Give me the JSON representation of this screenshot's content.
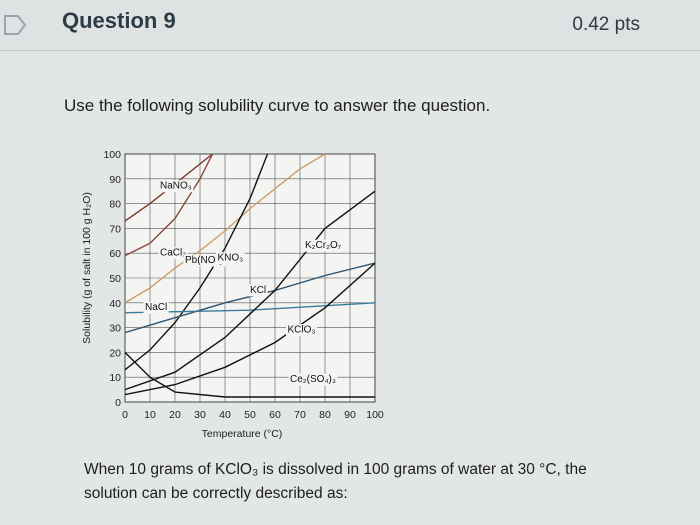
{
  "header": {
    "title": "Question 9",
    "points": "0.42 pts"
  },
  "body": {
    "prompt": "Use the following solubility curve to answer the question.",
    "question": "When 10 grams of KClO₃ is dissolved in 100 grams of water at 30 °C, the solution can be correctly described as:"
  },
  "chart_data": {
    "type": "line",
    "xlabel": "Temperature (°C)",
    "ylabel": "Solubility (g of salt in 100 g H₂O)",
    "xlim": [
      0,
      100
    ],
    "ylim": [
      0,
      100
    ],
    "xticks": [
      "0",
      "10",
      "20",
      "30",
      "40",
      "50",
      "60",
      "70",
      "80",
      "90",
      "100"
    ],
    "yticks": [
      "0",
      "10",
      "20",
      "30",
      "40",
      "50",
      "60",
      "70",
      "80",
      "90",
      "100"
    ],
    "grid": true,
    "series": [
      {
        "name": "NaNO₃",
        "points": [
          [
            0,
            73
          ],
          [
            10,
            80
          ],
          [
            20,
            88
          ],
          [
            30,
            96
          ],
          [
            35,
            100
          ]
        ],
        "label_at": [
          14,
          86
        ]
      },
      {
        "name": "CaCl₂",
        "points": [
          [
            0,
            59
          ],
          [
            10,
            64
          ],
          [
            20,
            74
          ],
          [
            30,
            90
          ],
          [
            35,
            100
          ]
        ],
        "label_at": [
          14,
          59
        ]
      },
      {
        "name": "Pb(NO₃)₂",
        "points": [
          [
            0,
            40
          ],
          [
            10,
            46
          ],
          [
            20,
            54
          ],
          [
            30,
            61
          ],
          [
            40,
            69
          ],
          [
            50,
            78
          ],
          [
            60,
            86
          ],
          [
            70,
            94
          ],
          [
            80,
            100
          ]
        ],
        "label_at": [
          24,
          56
        ]
      },
      {
        "name": "KNO₃",
        "points": [
          [
            0,
            13
          ],
          [
            10,
            21
          ],
          [
            20,
            32
          ],
          [
            30,
            46
          ],
          [
            40,
            62
          ],
          [
            50,
            82
          ],
          [
            57,
            100
          ]
        ],
        "label_at": [
          37,
          57
        ]
      },
      {
        "name": "KCl",
        "points": [
          [
            0,
            28
          ],
          [
            20,
            34
          ],
          [
            40,
            40
          ],
          [
            60,
            45
          ],
          [
            80,
            51
          ],
          [
            100,
            56
          ]
        ],
        "label_at": [
          50,
          44
        ]
      },
      {
        "name": "NaCl",
        "points": [
          [
            0,
            36
          ],
          [
            50,
            37
          ],
          [
            100,
            40
          ]
        ],
        "label_at": [
          8,
          37
        ]
      },
      {
        "name": "K₂Cr₂O₇",
        "points": [
          [
            0,
            5
          ],
          [
            20,
            12
          ],
          [
            40,
            26
          ],
          [
            60,
            45
          ],
          [
            80,
            70
          ],
          [
            100,
            85
          ]
        ],
        "label_at": [
          72,
          62
        ]
      },
      {
        "name": "KClO₃",
        "points": [
          [
            0,
            3
          ],
          [
            20,
            7
          ],
          [
            40,
            14
          ],
          [
            60,
            24
          ],
          [
            80,
            38
          ],
          [
            100,
            56
          ]
        ],
        "label_at": [
          65,
          28
        ]
      },
      {
        "name": "Ce₂(SO₄)₃",
        "points": [
          [
            0,
            20
          ],
          [
            10,
            10
          ],
          [
            20,
            4
          ],
          [
            40,
            2
          ],
          [
            100,
            2
          ]
        ],
        "label_at": [
          66,
          8
        ]
      }
    ]
  }
}
